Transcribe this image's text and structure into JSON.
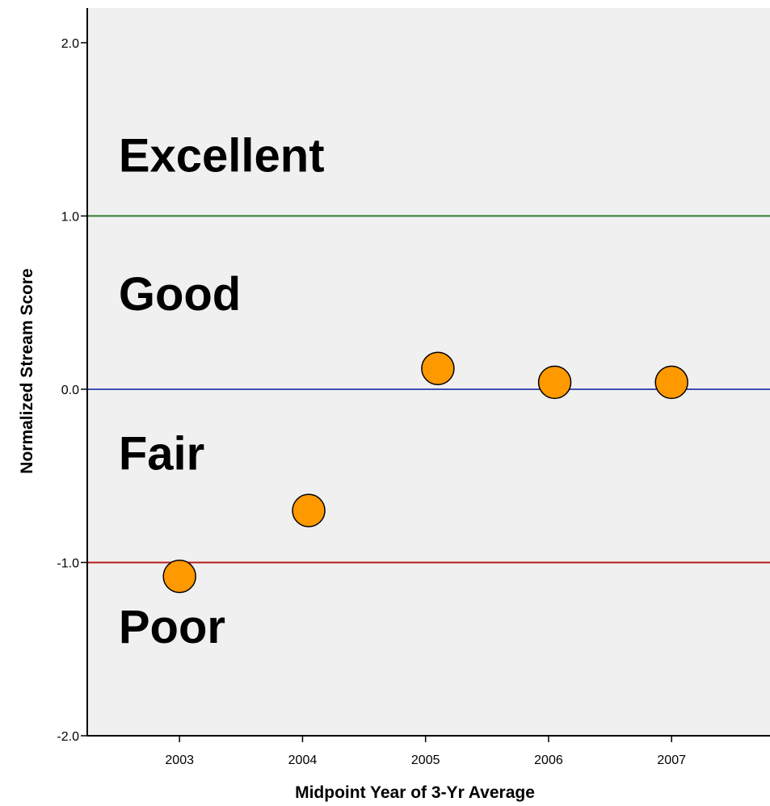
{
  "chart_data": {
    "type": "scatter",
    "title": "",
    "xlabel": "Midpoint Year of 3-Yr Average",
    "ylabel": "Normalized Stream Score",
    "xlim": [
      2002.25,
      2007.8
    ],
    "ylim": [
      -2.0,
      2.2
    ],
    "x_ticks": [
      {
        "value": 2003,
        "label": "2003"
      },
      {
        "value": 2004,
        "label": "2004"
      },
      {
        "value": 2005,
        "label": "2005"
      },
      {
        "value": 2006,
        "label": "2006"
      },
      {
        "value": 2007,
        "label": "2007"
      }
    ],
    "y_ticks": [
      {
        "value": 2.0,
        "label": "2.0"
      },
      {
        "value": 1.0,
        "label": "1.0"
      },
      {
        "value": 0.0,
        "label": "0.0"
      },
      {
        "value": -1.0,
        "label": "-1.0"
      },
      {
        "value": -2.0,
        "label": "-2.0"
      }
    ],
    "grid": false,
    "series": [
      {
        "points": [
          {
            "x": 2003.0,
            "y": -1.08
          },
          {
            "x": 2004.05,
            "y": -0.7
          },
          {
            "x": 2005.1,
            "y": 0.12
          },
          {
            "x": 2006.05,
            "y": 0.04
          },
          {
            "x": 2007.0,
            "y": 0.04
          }
        ],
        "color": "#ff9900"
      }
    ],
    "reference_lines": [
      {
        "y": 1.0,
        "color": "#2e7d32"
      },
      {
        "y": 0.0,
        "color": "#3f51b5"
      },
      {
        "y": -1.0,
        "color": "#b71c1c"
      }
    ],
    "annotations": [
      {
        "text": "Excellent",
        "x": 2002.4,
        "y": 1.35
      },
      {
        "text": "Good",
        "x": 2002.4,
        "y": 0.55
      },
      {
        "text": "Fair",
        "x": 2002.4,
        "y": -0.37
      },
      {
        "text": "Poor",
        "x": 2002.4,
        "y": -1.37
      }
    ],
    "plot_background": "#f0f0f0"
  }
}
